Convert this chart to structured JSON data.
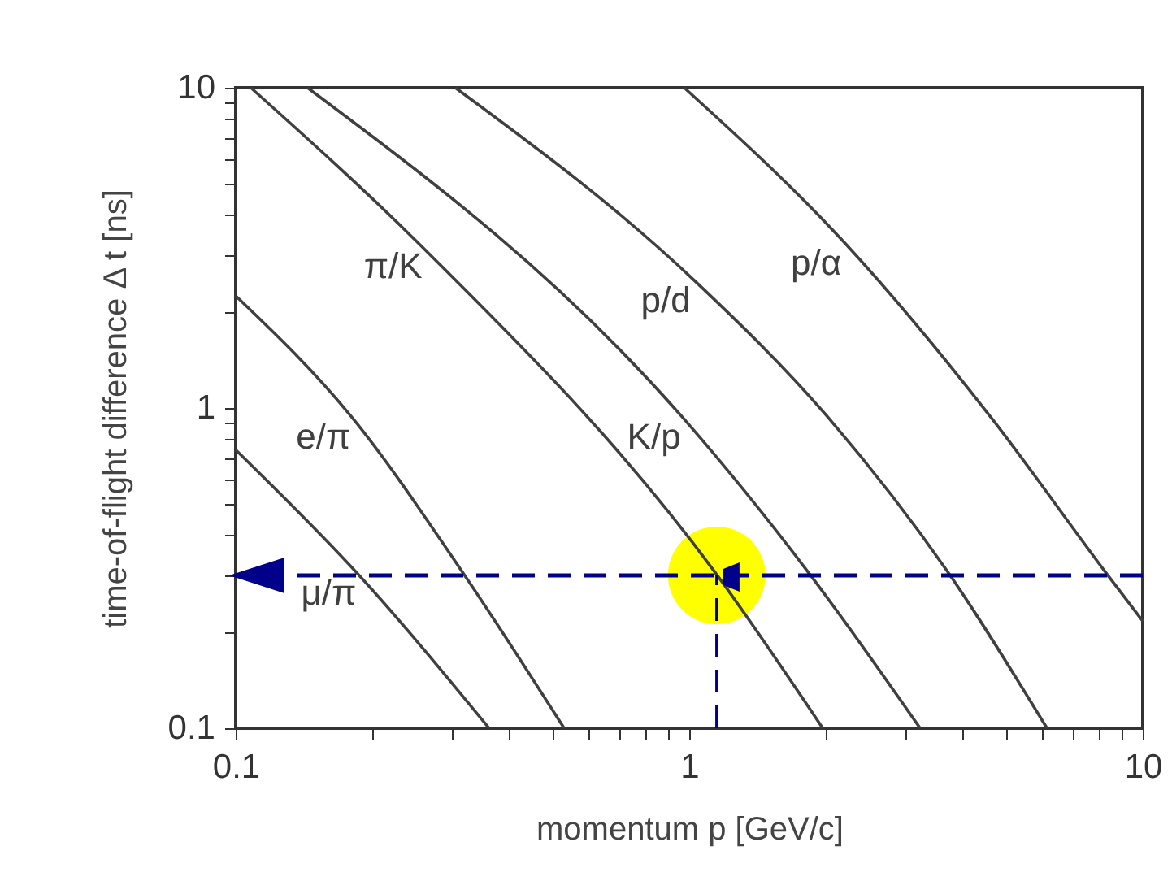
{
  "chart_data": {
    "type": "line",
    "xlabel": "momentum p [GeV/c]",
    "ylabel": "time-of-flight difference Δ t [ns]",
    "log": "xy",
    "grid": false,
    "legend": false,
    "marker": "none",
    "xlim": [
      0.1,
      10
    ],
    "ylim": [
      0.1,
      10
    ],
    "xticks": [
      0.1,
      {
        "value": 0.2,
        "label": null
      },
      {
        "value": 0.3,
        "label": null
      },
      {
        "value": 0.4,
        "label": null
      },
      {
        "value": 0.5,
        "label": null
      },
      {
        "value": 0.6,
        "label": null
      },
      {
        "value": 0.7,
        "label": null
      },
      {
        "value": 0.8,
        "label": null
      },
      {
        "value": 0.9,
        "label": null
      },
      1,
      {
        "value": 2,
        "label": null
      },
      {
        "value": 3,
        "label": null
      },
      {
        "value": 4,
        "label": null
      },
      {
        "value": 5,
        "label": null
      },
      {
        "value": 6,
        "label": null
      },
      {
        "value": 7,
        "label": null
      },
      {
        "value": 8,
        "label": null
      },
      {
        "value": 9,
        "label": null
      },
      10
    ],
    "yticks": [
      0.1,
      {
        "value": 0.2,
        "label": null
      },
      {
        "value": 0.3,
        "label": null
      },
      {
        "value": 0.4,
        "label": null
      },
      {
        "value": 0.5,
        "label": null
      },
      {
        "value": 0.6,
        "label": null
      },
      {
        "value": 0.7,
        "label": null
      },
      {
        "value": 0.8,
        "label": null
      },
      {
        "value": 0.9,
        "label": null
      },
      1,
      {
        "value": 2,
        "label": null
      },
      {
        "value": 3,
        "label": null
      },
      {
        "value": 4,
        "label": null
      },
      {
        "value": 5,
        "label": null
      },
      {
        "value": 6,
        "label": null
      },
      {
        "value": 7,
        "label": null
      },
      {
        "value": 8,
        "label": null
      },
      {
        "value": 9,
        "label": null
      },
      10
    ],
    "series": [
      {
        "type": "scatter",
        "color": "#ffff00",
        "marker": "circle",
        "x": [
          1.15
        ],
        "values": [
          0.3
        ]
      },
      {
        "name": "e/π",
        "color": "#404040",
        "x": [
          0.1,
          0.181,
          0.313,
          0.53
        ],
        "values": [
          2.24,
          0.93,
          0.314,
          0.1
        ]
      },
      {
        "name": "μ/π",
        "color": "#404040",
        "x": [
          0.1,
          0.186,
          0.362
        ],
        "values": [
          0.74,
          0.303,
          0.1
        ]
      },
      {
        "name": "π/K",
        "color": "#404040",
        "x": [
          0.108,
          0.258,
          1.14,
          1.97
        ],
        "values": [
          10,
          3.18,
          0.307,
          0.1
        ]
      },
      {
        "name": "K/p",
        "color": "#404040",
        "x": [
          0.144,
          0.97,
          1.83,
          3.23
        ],
        "values": [
          10,
          0.93,
          0.307,
          0.1
        ]
      },
      {
        "name": "p/d",
        "color": "#404040",
        "x": [
          0.305,
          1.03,
          2.03,
          3.72,
          6.15
        ],
        "values": [
          10,
          2.49,
          0.93,
          0.307,
          0.1
        ]
      },
      {
        "name": "p/α",
        "color": "#404040",
        "x": [
          0.975,
          2.21,
          4.64,
          8.28,
          10
        ],
        "values": [
          10,
          3.26,
          0.93,
          0.307,
          0.216
        ]
      },
      {
        "type": "line",
        "color": "#00008b",
        "line_style": "dashed",
        "x": [
          1.15,
          1.15
        ],
        "values": [
          0.1,
          0.3
        ]
      }
    ],
    "ref_lines": [
      {
        "axis": "y",
        "value": 0.3,
        "color": "#00008b",
        "line_style": "dashed"
      }
    ]
  }
}
